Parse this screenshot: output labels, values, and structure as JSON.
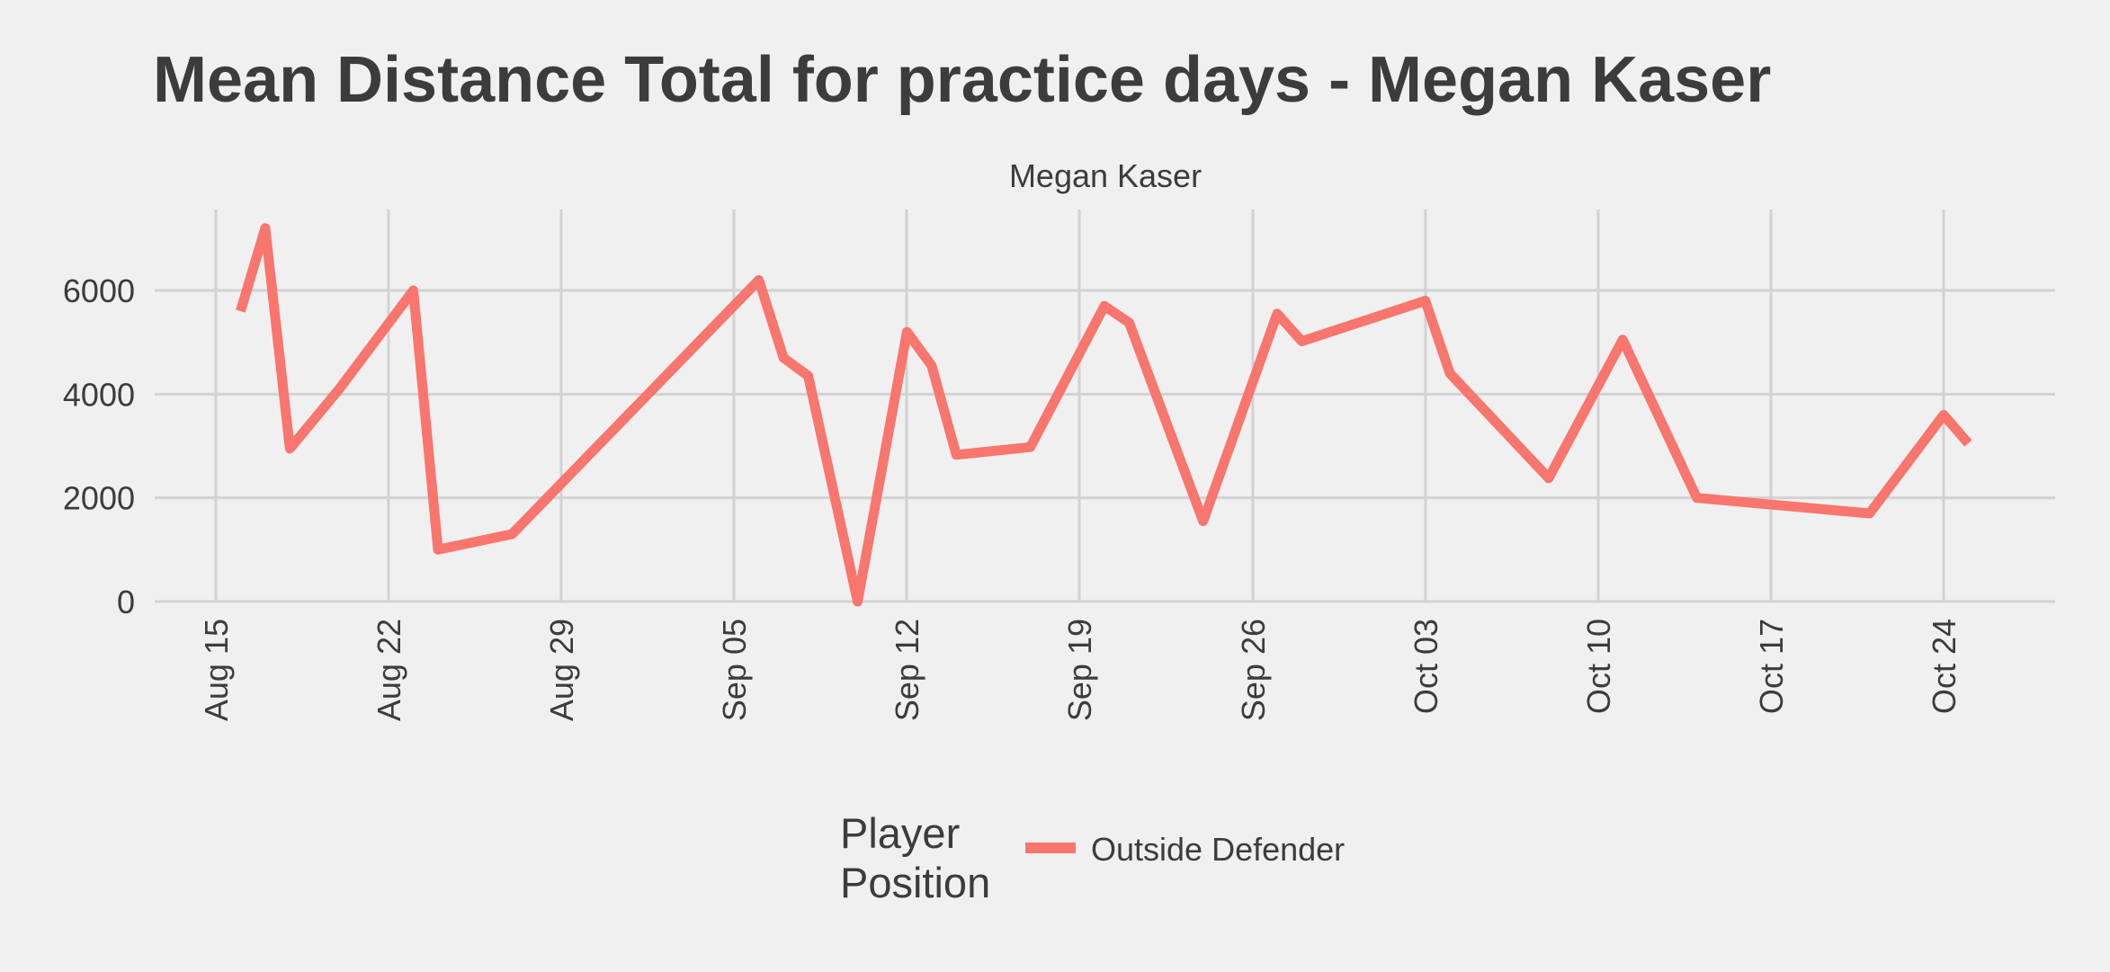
{
  "chart_data": {
    "type": "line",
    "title": "Mean Distance Total for practice days -  Megan Kaser",
    "facet_label": "Megan Kaser",
    "xlabel": "",
    "ylabel": "",
    "x_ticks": [
      "Aug 15",
      "Aug 22",
      "Aug 29",
      "Sep 05",
      "Sep 12",
      "Sep 19",
      "Sep 26",
      "Oct 03",
      "Oct 10",
      "Oct 17",
      "Oct 24"
    ],
    "y_ticks": [
      "0",
      "2000",
      "4000",
      "6000"
    ],
    "ylim": [
      0,
      7200
    ],
    "grid": true,
    "legend": {
      "title_lines": [
        "Player",
        "Position"
      ],
      "placement": "bottom",
      "entries": [
        {
          "label": "Outside Defender",
          "color": "#f8766d"
        }
      ]
    },
    "series": [
      {
        "name": "Outside Defender",
        "color": "#f8766d",
        "points": [
          {
            "x": "2022-08-16",
            "y": 5600
          },
          {
            "x": "2022-08-17",
            "y": 7200
          },
          {
            "x": "2022-08-18",
            "y": 2950
          },
          {
            "x": "2022-08-20",
            "y": 4100
          },
          {
            "x": "2022-08-23",
            "y": 6000
          },
          {
            "x": "2022-08-24",
            "y": 1000
          },
          {
            "x": "2022-08-27",
            "y": 1300
          },
          {
            "x": "2022-09-06",
            "y": 6200
          },
          {
            "x": "2022-09-07",
            "y": 4700
          },
          {
            "x": "2022-09-08",
            "y": 4350
          },
          {
            "x": "2022-09-10",
            "y": 0
          },
          {
            "x": "2022-09-12",
            "y": 5200
          },
          {
            "x": "2022-09-13",
            "y": 4550
          },
          {
            "x": "2022-09-14",
            "y": 2830
          },
          {
            "x": "2022-09-17",
            "y": 2980
          },
          {
            "x": "2022-09-20",
            "y": 5700
          },
          {
            "x": "2022-09-21",
            "y": 5380
          },
          {
            "x": "2022-09-24",
            "y": 1550
          },
          {
            "x": "2022-09-27",
            "y": 5550
          },
          {
            "x": "2022-09-28",
            "y": 5020
          },
          {
            "x": "2022-10-03",
            "y": 5800
          },
          {
            "x": "2022-10-04",
            "y": 4400
          },
          {
            "x": "2022-10-08",
            "y": 2380
          },
          {
            "x": "2022-10-11",
            "y": 5050
          },
          {
            "x": "2022-10-14",
            "y": 2000
          },
          {
            "x": "2022-10-21",
            "y": 1700
          },
          {
            "x": "2022-10-24",
            "y": 3600
          },
          {
            "x": "2022-10-25",
            "y": 3050
          }
        ]
      }
    ]
  }
}
